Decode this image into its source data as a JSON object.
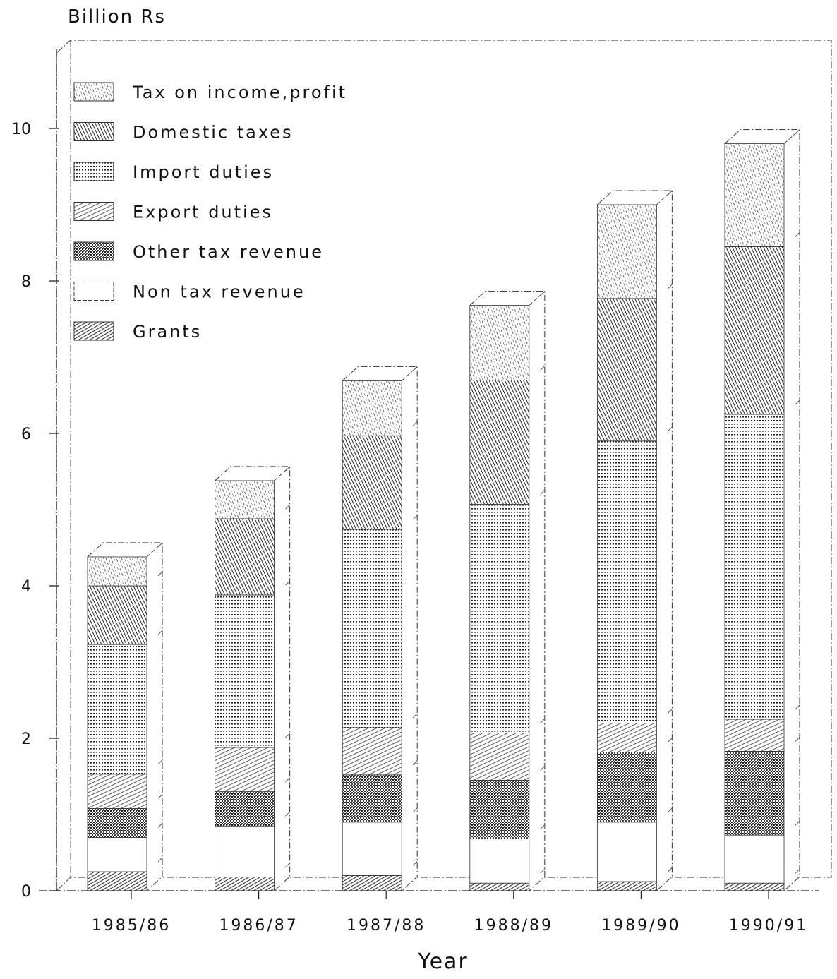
{
  "chart_data": {
    "type": "bar",
    "stacked": true,
    "ylabel": "Billion Rs",
    "xlabel": "Year",
    "ylim": [
      0,
      11
    ],
    "yticks": [
      0,
      2,
      4,
      6,
      8,
      10
    ],
    "grid": false,
    "legend_position": "top-left",
    "categories": [
      "1985/86",
      "1986/87",
      "1987/88",
      "1988/89",
      "1989/90",
      "1990/91"
    ],
    "series": [
      {
        "name": "Grants",
        "pattern": "diagonal-dense",
        "values": [
          0.25,
          0.18,
          0.2,
          0.1,
          0.12,
          0.1
        ]
      },
      {
        "name": "Non tax revenue",
        "pattern": "blank",
        "values": [
          0.45,
          0.67,
          0.7,
          0.58,
          0.78,
          0.63
        ]
      },
      {
        "name": "Other tax revenue",
        "pattern": "crosshatch",
        "values": [
          0.38,
          0.45,
          0.62,
          0.77,
          0.92,
          1.1
        ]
      },
      {
        "name": "Export duties",
        "pattern": "diagonal",
        "values": [
          0.45,
          0.58,
          0.62,
          0.62,
          0.38,
          0.42
        ]
      },
      {
        "name": "Import duties",
        "pattern": "dotted",
        "values": [
          1.7,
          2.0,
          2.6,
          3.0,
          3.7,
          4.0
        ]
      },
      {
        "name": "Domestic taxes",
        "pattern": "diagonal-back",
        "values": [
          0.77,
          1.0,
          1.23,
          1.63,
          1.87,
          2.2
        ]
      },
      {
        "name": "Tax on income,profit",
        "pattern": "speckle",
        "values": [
          0.38,
          0.5,
          0.72,
          0.98,
          1.23,
          1.35
        ]
      }
    ],
    "legend_order": [
      "Tax on income,profit",
      "Domestic taxes",
      "Import duties",
      "Export duties",
      "Other tax revenue",
      "Non tax revenue",
      "Grants"
    ]
  }
}
